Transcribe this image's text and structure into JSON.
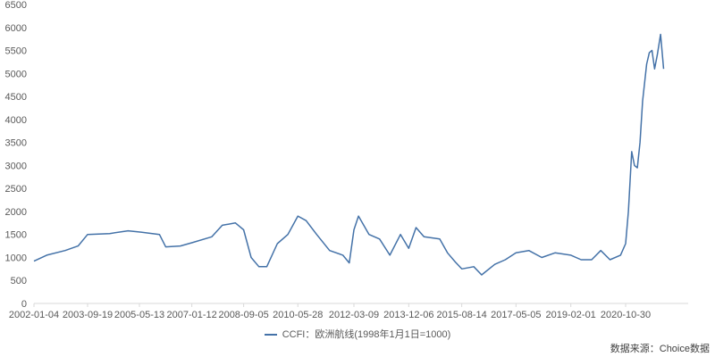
{
  "chart_data": {
    "type": "line",
    "title": "",
    "xlabel": "",
    "ylabel": "",
    "ylim": [
      0,
      6500
    ],
    "yticks": [
      "0",
      "500",
      "1000",
      "1500",
      "2000",
      "2500",
      "3000",
      "3500",
      "4000",
      "4500",
      "5000",
      "5500",
      "6000",
      "6500"
    ],
    "xticks": [
      "2002-01-04",
      "2003-09-19",
      "2005-05-13",
      "2007-01-12",
      "2008-09-05",
      "2010-05-28",
      "2012-03-09",
      "2013-12-06",
      "2015-08-14",
      "2017-05-05",
      "2019-02-01",
      "2020-10-30"
    ],
    "grid": false,
    "legend_position": "bottom",
    "color": "#4472a8",
    "series": [
      {
        "name": "CCFI：欧洲航线(1998年1月1日=1000)",
        "x": [
          "2002-01-04",
          "2002-06-01",
          "2003-01-01",
          "2003-06-01",
          "2003-09-19",
          "2004-06-01",
          "2005-01-01",
          "2005-06-01",
          "2006-01-01",
          "2006-03-15",
          "2006-09-01",
          "2007-01-12",
          "2007-09-01",
          "2008-01-01",
          "2008-06-01",
          "2008-09-05",
          "2008-12-01",
          "2009-03-01",
          "2009-06-01",
          "2009-10-01",
          "2010-02-01",
          "2010-05-28",
          "2010-09-01",
          "2011-01-01",
          "2011-06-01",
          "2011-11-01",
          "2012-01-15",
          "2012-03-09",
          "2012-05-01",
          "2012-09-01",
          "2013-01-01",
          "2013-05-01",
          "2013-09-01",
          "2013-12-06",
          "2014-03-01",
          "2014-06-01",
          "2014-12-01",
          "2015-03-01",
          "2015-06-01",
          "2015-08-14",
          "2016-01-01",
          "2016-04-01",
          "2016-09-01",
          "2017-01-01",
          "2017-05-05",
          "2017-10-01",
          "2018-03-01",
          "2018-08-01",
          "2019-02-01",
          "2019-06-01",
          "2019-10-01",
          "2020-01-15",
          "2020-05-01",
          "2020-09-01",
          "2020-10-30",
          "2020-12-01",
          "2021-01-08",
          "2021-02-10",
          "2021-03-15",
          "2021-04-15",
          "2021-05-15",
          "2021-07-01",
          "2021-08-01",
          "2021-09-01",
          "2021-10-01",
          "2021-11-01",
          "2021-12-10",
          "2022-01-14"
        ],
        "values": [
          920,
          1050,
          1150,
          1250,
          1500,
          1520,
          1580,
          1550,
          1500,
          1230,
          1250,
          1320,
          1450,
          1700,
          1750,
          1600,
          1000,
          800,
          800,
          1300,
          1500,
          1900,
          1800,
          1500,
          1150,
          1050,
          880,
          1600,
          1900,
          1500,
          1400,
          1050,
          1500,
          1200,
          1650,
          1450,
          1400,
          1100,
          900,
          750,
          800,
          620,
          850,
          950,
          1100,
          1150,
          1000,
          1100,
          1050,
          950,
          950,
          1150,
          950,
          1050,
          1300,
          2000,
          3300,
          3000,
          2950,
          3500,
          4400,
          5200,
          5450,
          5500,
          5100,
          5400,
          5850,
          5100
        ]
      }
    ]
  },
  "legend": {
    "label": "CCFI：欧洲航线(1998年1月1日=1000)"
  },
  "source": "数据来源：Choice数据"
}
